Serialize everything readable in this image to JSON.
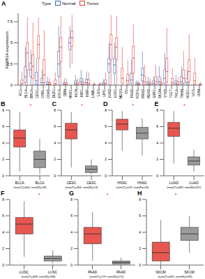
{
  "chart_data": [
    {
      "panel": "A",
      "type": "box",
      "y_label": "FAM83A expression",
      "legend": "top",
      "legend_title": "Type",
      "categories": [
        "ACC",
        "BLCA",
        "BRCA",
        "CESC",
        "CHOL",
        "COAD",
        "DLBC",
        "ESCA",
        "GBM",
        "HNSC",
        "KICH",
        "KIRC",
        "KIRP",
        "LAML",
        "LGG",
        "LIHC",
        "LUAD",
        "LUSC",
        "MESO",
        "OV",
        "PAAD",
        "PCPG",
        "PRAD",
        "READ",
        "SARC",
        "SKCM",
        "STAD",
        "TGCT",
        "THCA",
        "THYM",
        "UCEC",
        "UCS",
        "UVM"
      ],
      "annotations": [
        null,
        "**",
        "***",
        "*",
        null,
        "***",
        null,
        "***",
        null,
        "***",
        "*",
        "***",
        null,
        null,
        null,
        null,
        "***",
        "***",
        null,
        null,
        "**",
        null,
        "***",
        "***",
        null,
        null,
        "**",
        null,
        "*",
        null,
        "***",
        null,
        null
      ],
      "ylim": [
        0,
        8.5
      ],
      "yticks": [
        0,
        2.5,
        5,
        7.5
      ],
      "series": [
        {
          "name": "Normal",
          "color": "#3a64b0",
          "values": [
            null,
            [
              0,
              0.3,
              1.0,
              2.2,
              4.5
            ],
            [
              0,
              1.0,
              1.8,
              2.6,
              4.2
            ],
            [
              0,
              0.1,
              0.5,
              1.5,
              3.2
            ],
            [
              0,
              0.05,
              0.3,
              0.8,
              1.8
            ],
            [
              0,
              0.05,
              0.15,
              0.4,
              1.0
            ],
            null,
            [
              0,
              1.0,
              2.5,
              4.0,
              7.0
            ],
            [
              0,
              0.02,
              0.1,
              0.3,
              0.8
            ],
            [
              2.0,
              4.2,
              5.0,
              5.6,
              7.0
            ],
            [
              0,
              0.05,
              0.2,
              0.5,
              1.2
            ],
            [
              0,
              0.1,
              0.4,
              0.8,
              1.8
            ],
            [
              0,
              0.1,
              0.3,
              0.7,
              1.6
            ],
            null,
            null,
            [
              0,
              0.02,
              0.1,
              0.3,
              0.7
            ],
            [
              0,
              1.5,
              2.5,
              3.2,
              5.0
            ],
            [
              0,
              1.4,
              2.4,
              3.2,
              5.0
            ],
            null,
            null,
            [
              0,
              0.2,
              0.6,
              1.4,
              3.0
            ],
            [
              0,
              0.02,
              0.1,
              0.3,
              0.6
            ],
            [
              0,
              0.5,
              1.2,
              2.0,
              4.0
            ],
            [
              0,
              0.05,
              0.15,
              0.4,
              1.0
            ],
            [
              0,
              0.05,
              0.2,
              0.5,
              1.0
            ],
            [
              0,
              0.1,
              0.4,
              1.0,
              2.2
            ],
            [
              0,
              0.2,
              0.8,
              1.8,
              3.8
            ],
            null,
            [
              0,
              0.05,
              0.2,
              0.5,
              1.2
            ],
            [
              0,
              0.1,
              0.4,
              1.0,
              2.2
            ],
            [
              0,
              0.05,
              0.3,
              0.8,
              1.8
            ],
            null,
            null
          ]
        },
        {
          "name": "Tumor",
          "color": "#e0403a",
          "values": [
            [
              0,
              0.05,
              0.2,
              0.6,
              1.6
            ],
            [
              0,
              1.8,
              3.8,
              5.0,
              8.0
            ],
            [
              0,
              0.8,
              2.2,
              3.6,
              7.4
            ],
            [
              0,
              3.2,
              4.8,
              5.8,
              8.0
            ],
            [
              0,
              0.3,
              1.2,
              3.0,
              6.5
            ],
            [
              0,
              0.02,
              0.1,
              0.3,
              0.8
            ],
            [
              0,
              0.05,
              0.2,
              0.6,
              1.5
            ],
            [
              0,
              2.8,
              4.5,
              5.6,
              8.2
            ],
            [
              0,
              0.02,
              0.1,
              0.3,
              0.8
            ],
            [
              2.5,
              4.6,
              5.6,
              6.4,
              8.3
            ],
            [
              0,
              0.02,
              0.1,
              0.3,
              0.8
            ],
            [
              0,
              0.02,
              0.1,
              0.3,
              0.8
            ],
            [
              0,
              0.05,
              0.2,
              0.6,
              1.5
            ],
            [
              0,
              0.01,
              0.05,
              0.1,
              0.3
            ],
            [
              0,
              0.01,
              0.05,
              0.15,
              0.4
            ],
            [
              0,
              0.05,
              0.2,
              0.6,
              1.5
            ],
            [
              0,
              3.0,
              4.8,
              6.0,
              8.3
            ],
            [
              0,
              3.0,
              4.5,
              5.6,
              8.2
            ],
            [
              0,
              0.2,
              0.8,
              2.0,
              4.5
            ],
            [
              0,
              0.1,
              0.5,
              1.3,
              3.0
            ],
            [
              0,
              1.4,
              3.2,
              4.6,
              7.2
            ],
            [
              0,
              0.02,
              0.1,
              0.2,
              0.5
            ],
            [
              0,
              0.1,
              0.4,
              1.0,
              2.4
            ],
            [
              0,
              0.02,
              0.1,
              0.3,
              0.8
            ],
            [
              0,
              0.1,
              0.4,
              1.0,
              2.4
            ],
            [
              0,
              0.02,
              0.1,
              0.3,
              0.8
            ],
            [
              0,
              0.4,
              1.6,
              3.2,
              6.8
            ],
            [
              0,
              0.1,
              0.3,
              0.8,
              2.0
            ],
            [
              0,
              0.02,
              0.1,
              0.4,
              1.0
            ],
            [
              0,
              0.2,
              0.8,
              1.8,
              4.0
            ],
            [
              0,
              0.4,
              1.6,
              3.0,
              6.0
            ],
            [
              0,
              0.1,
              0.5,
              1.4,
              3.2
            ],
            [
              0,
              0.01,
              0.05,
              0.15,
              0.4
            ]
          ]
        }
      ]
    },
    {
      "panel": "B",
      "type": "box",
      "categories": [
        "BLCA",
        "BLCA"
      ],
      "x_label": "(num(T)=404; num(N)=28)",
      "annotation": "*",
      "ylim": [
        0,
        8
      ],
      "yticks": [
        0,
        2,
        4,
        6,
        8
      ],
      "colors": [
        "#e8574f",
        "#9a9a9a"
      ],
      "values": [
        [
          0.5,
          3.5,
          4.6,
          5.6,
          7.8
        ],
        [
          0.2,
          1.0,
          2.0,
          3.0,
          4.5
        ]
      ]
    },
    {
      "panel": "C",
      "type": "box",
      "categories": [
        "CESC",
        "CESC"
      ],
      "x_label": "(num(T)=306; num(N)=13)",
      "annotation": "*",
      "ylim": [
        0,
        8
      ],
      "yticks": [
        0,
        2,
        4,
        6,
        8
      ],
      "colors": [
        "#e8574f",
        "#9a9a9a"
      ],
      "values": [
        [
          1.0,
          4.5,
          5.6,
          6.4,
          7.8
        ],
        [
          0.2,
          0.4,
          0.8,
          1.2,
          2.0
        ]
      ]
    },
    {
      "panel": "D",
      "type": "box",
      "categories": [
        "HNSC",
        "HNSC"
      ],
      "x_label": "(num(T)=519; num(N)=44)",
      "annotation": "*",
      "ylim": [
        0,
        8
      ],
      "yticks": [
        0,
        2,
        4,
        6,
        8
      ],
      "colors": [
        "#e8574f",
        "#9a9a9a"
      ],
      "values": [
        [
          3.0,
          5.6,
          6.3,
          6.9,
          7.9
        ],
        [
          2.5,
          4.5,
          5.2,
          5.9,
          7.0
        ]
      ]
    },
    {
      "panel": "E",
      "type": "box",
      "categories": [
        "LUAD",
        "LUAD"
      ],
      "x_label": "(num(T)=483; num(N)=347)",
      "annotation": "*",
      "ylim": [
        0,
        8
      ],
      "yticks": [
        0,
        2,
        4,
        6,
        8
      ],
      "colors": [
        "#e8574f",
        "#9a9a9a"
      ],
      "values": [
        [
          1.5,
          4.8,
          5.8,
          6.5,
          7.9
        ],
        [
          0.5,
          1.3,
          1.8,
          2.3,
          3.2
        ]
      ]
    },
    {
      "panel": "F",
      "type": "box",
      "categories": [
        "LUSC",
        "LUSC"
      ],
      "x_label": "(num(T)=486; num(N)=338)",
      "annotation": "*",
      "ylim": [
        0,
        8
      ],
      "yticks": [
        0,
        2,
        4,
        6,
        8
      ],
      "colors": [
        "#e8574f",
        "#9a9a9a"
      ],
      "values": [
        [
          1.0,
          3.8,
          5.0,
          5.8,
          7.8
        ],
        [
          0.2,
          0.5,
          0.8,
          1.1,
          1.8
        ]
      ]
    },
    {
      "panel": "G",
      "type": "box",
      "categories": [
        "PAAD",
        "PAAD"
      ],
      "x_label": "(num(T)=179; num(N)=171)",
      "annotation": "*",
      "ylim": [
        0,
        8
      ],
      "yticks": [
        0,
        2,
        4,
        6,
        8
      ],
      "colors": [
        "#e8574f",
        "#9a9a9a"
      ],
      "values": [
        [
          0.5,
          2.6,
          3.8,
          4.6,
          6.5
        ],
        [
          0.05,
          0.15,
          0.3,
          0.5,
          0.9
        ]
      ]
    },
    {
      "panel": "H",
      "type": "box",
      "categories": [
        "SKCM",
        "SKCM"
      ],
      "x_label": "(num(T)=461; num(N)=558)",
      "annotation": "*",
      "ylim": [
        0,
        8
      ],
      "yticks": [
        0,
        2,
        4,
        6,
        8
      ],
      "colors": [
        "#e8574f",
        "#9a9a9a"
      ],
      "values": [
        [
          0,
          0.5,
          1.5,
          2.8,
          5.5
        ],
        [
          1.5,
          3.0,
          3.8,
          4.6,
          6.0
        ]
      ]
    }
  ]
}
